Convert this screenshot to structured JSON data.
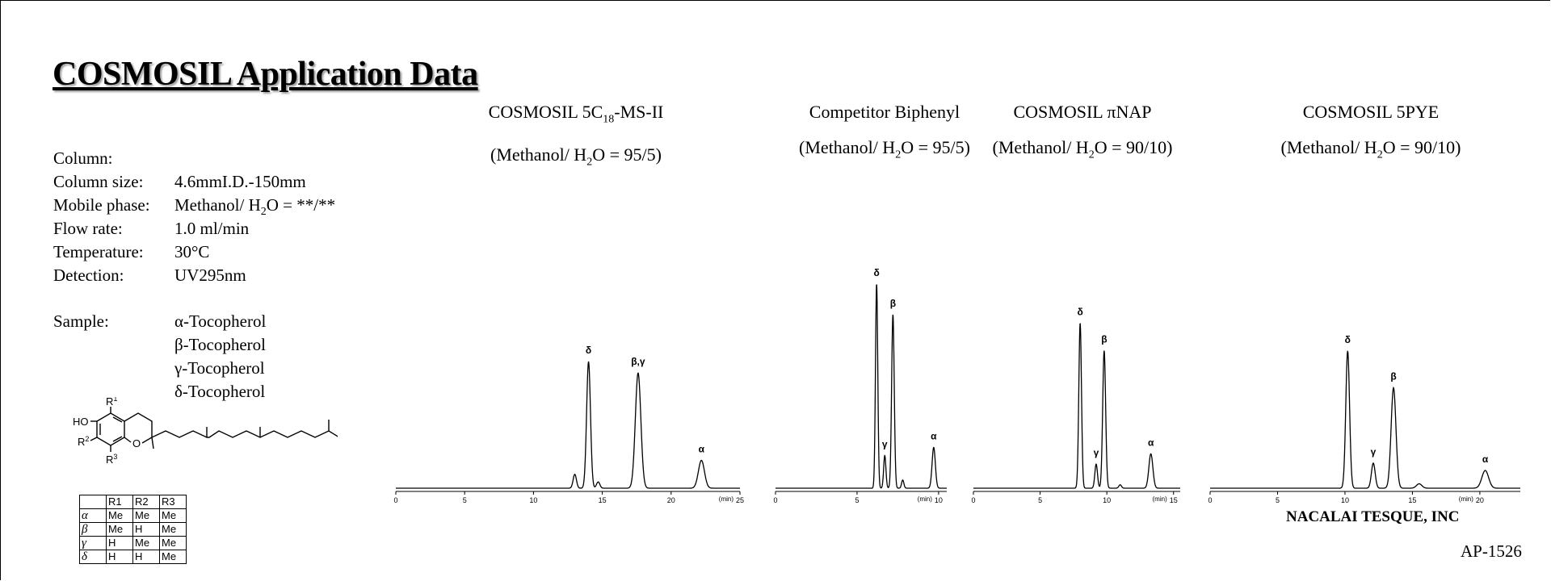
{
  "title": "COSMOSIL Application Data",
  "conditions": [
    {
      "label": "Column:",
      "value": ""
    },
    {
      "label": "Column size:",
      "value": "4.6mmI.D.-150mm"
    },
    {
      "label": "Mobile phase:",
      "value_pre": "Methanol/ H",
      "value_sub": "2",
      "value_post": "O = **/**"
    },
    {
      "label": "Flow rate:",
      "value": "1.0 ml/min"
    },
    {
      "label": "Temperature:",
      "value": "30°C"
    },
    {
      "label": "Detection:",
      "value": "UV295nm"
    }
  ],
  "sample": {
    "label": "Sample:",
    "items": [
      "α-Tocopherol",
      "β-Tocopherol",
      "γ-Tocopherol",
      "δ-Tocopherol"
    ]
  },
  "structure": {
    "ho": "HO",
    "r1": "R",
    "r1_sup": "1",
    "r2": "R",
    "r2_sup": "2",
    "r3": "R",
    "r3_sup": "3",
    "o": "O"
  },
  "substituent_table": {
    "headers": [
      "",
      "R1",
      "R2",
      "R3"
    ],
    "rows": [
      [
        "α",
        "Me",
        "Me",
        "Me"
      ],
      [
        "β",
        "Me",
        "H",
        "Me"
      ],
      [
        "γ",
        "H",
        "Me",
        "Me"
      ],
      [
        "δ",
        "H",
        "H",
        "Me"
      ]
    ]
  },
  "brand": "NACALAI TESQUE, INC",
  "doc_id": "AP-1526",
  "chart_data": [
    {
      "type": "line",
      "name_pre": "COSMOSIL  5C",
      "name_sub": "18",
      "name_post": "-MS-II",
      "cond_pre": "(Methanol/ H",
      "cond_sub": "2",
      "cond_post": "O = 95/5)",
      "xlim": [
        0,
        25
      ],
      "xticks": [
        0,
        5,
        10,
        15,
        20,
        25
      ],
      "xunit": "(min)",
      "peaks": [
        {
          "t": 13.0,
          "h": 0.11,
          "w": 0.12,
          "label": ""
        },
        {
          "t": 14.0,
          "h": 1.0,
          "w": 0.14,
          "label": "δ"
        },
        {
          "t": 14.7,
          "h": 0.05,
          "w": 0.12,
          "label": ""
        },
        {
          "t": 17.6,
          "h": 0.91,
          "w": 0.2,
          "label": "β,γ"
        },
        {
          "t": 22.2,
          "h": 0.22,
          "w": 0.22,
          "label": "α"
        }
      ]
    },
    {
      "type": "line",
      "name_pre": "Competitor Biphenyl",
      "name_sub": "",
      "name_post": "",
      "cond_pre": "(Methanol/ H",
      "cond_sub": "2",
      "cond_post": "O = 95/5)",
      "xlim": [
        0,
        10.5
      ],
      "xticks": [
        0,
        5,
        10
      ],
      "xunit": "(min)",
      "peaks": [
        {
          "t": 6.2,
          "h": 1.0,
          "w": 0.07,
          "label": "δ"
        },
        {
          "t": 6.7,
          "h": 0.16,
          "w": 0.07,
          "label": "γ"
        },
        {
          "t": 7.2,
          "h": 0.85,
          "w": 0.08,
          "label": "β"
        },
        {
          "t": 7.8,
          "h": 0.04,
          "w": 0.07,
          "label": ""
        },
        {
          "t": 9.7,
          "h": 0.2,
          "w": 0.1,
          "label": "α"
        }
      ]
    },
    {
      "type": "line",
      "name_pre": "COSMOSIL  πNAP",
      "name_sub": "",
      "name_post": "",
      "cond_pre": "(Methanol/ H",
      "cond_sub": "2",
      "cond_post": "O = 90/10)",
      "xlim": [
        0,
        15.5
      ],
      "xticks": [
        0,
        5,
        10,
        15
      ],
      "xunit": "(min)",
      "peaks": [
        {
          "t": 8.0,
          "h": 0.96,
          "w": 0.1,
          "label": "δ"
        },
        {
          "t": 9.2,
          "h": 0.14,
          "w": 0.1,
          "label": "γ"
        },
        {
          "t": 9.8,
          "h": 0.8,
          "w": 0.11,
          "label": "β"
        },
        {
          "t": 11.0,
          "h": 0.02,
          "w": 0.1,
          "label": ""
        },
        {
          "t": 13.3,
          "h": 0.2,
          "w": 0.15,
          "label": "α"
        }
      ]
    },
    {
      "type": "line",
      "name_pre": "COSMOSIL  5PYE",
      "name_sub": "",
      "name_post": "",
      "cond_pre": "(Methanol/ H",
      "cond_sub": "2",
      "cond_post": "O = 90/10)",
      "xlim": [
        0,
        23
      ],
      "xticks": [
        0,
        5,
        10,
        15,
        20
      ],
      "xunit": "(min)",
      "peaks": [
        {
          "t": 10.2,
          "h": 0.93,
          "w": 0.14,
          "label": "δ"
        },
        {
          "t": 12.1,
          "h": 0.17,
          "w": 0.14,
          "label": "γ"
        },
        {
          "t": 13.6,
          "h": 0.68,
          "w": 0.18,
          "label": "β"
        },
        {
          "t": 15.5,
          "h": 0.03,
          "w": 0.2,
          "label": ""
        },
        {
          "t": 20.4,
          "h": 0.12,
          "w": 0.25,
          "label": "α"
        }
      ]
    }
  ]
}
